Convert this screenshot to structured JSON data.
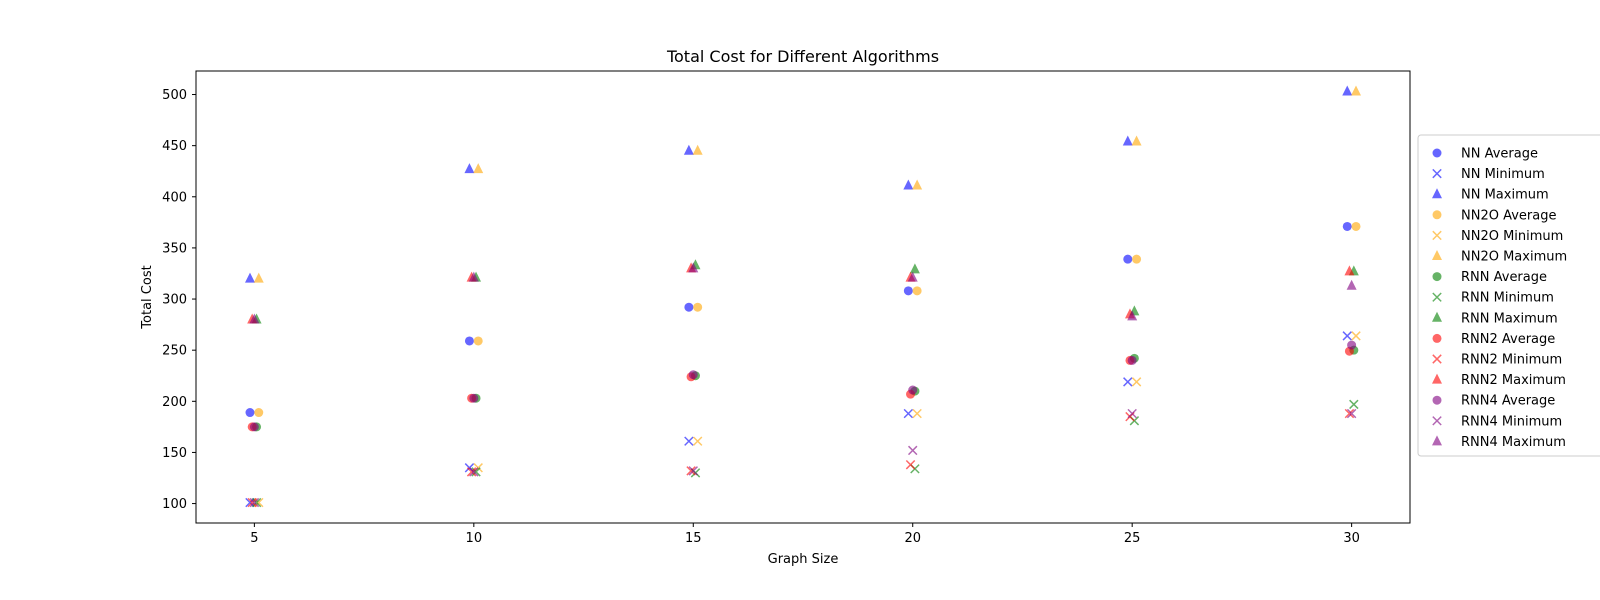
{
  "chart_data": {
    "type": "scatter",
    "title": "Total Cost for Different Algorithms",
    "xlabel": "Graph Size",
    "ylabel": "Total Cost",
    "x_ticks": [
      5,
      10,
      15,
      20,
      25,
      30
    ],
    "y_ticks": [
      100,
      150,
      200,
      250,
      300,
      350,
      400,
      450,
      500
    ],
    "xlim": [
      3.67,
      31.33
    ],
    "ylim": [
      81,
      523
    ],
    "grid": false,
    "legend_position": "right, outside plot area",
    "series": [
      {
        "name": "NN Average",
        "color": "#0000ff",
        "marker": "circle",
        "offset": -0.1,
        "points": [
          [
            5,
            189
          ],
          [
            10,
            259
          ],
          [
            15,
            292
          ],
          [
            20,
            308
          ],
          [
            25,
            339
          ],
          [
            30,
            371
          ]
        ]
      },
      {
        "name": "NN Minimum",
        "color": "#0000ff",
        "marker": "x",
        "offset": -0.1,
        "points": [
          [
            5,
            101
          ],
          [
            10,
            135
          ],
          [
            15,
            161
          ],
          [
            20,
            188
          ],
          [
            25,
            219
          ],
          [
            30,
            264
          ]
        ]
      },
      {
        "name": "NN Maximum",
        "color": "#0000ff",
        "marker": "triangle",
        "offset": -0.1,
        "points": [
          [
            5,
            320
          ],
          [
            10,
            427
          ],
          [
            15,
            445
          ],
          [
            20,
            411
          ],
          [
            25,
            454
          ],
          [
            30,
            503
          ]
        ]
      },
      {
        "name": "NN2O Average",
        "color": "#ffa500",
        "marker": "circle",
        "offset": 0.1,
        "points": [
          [
            5,
            189
          ],
          [
            10,
            259
          ],
          [
            15,
            292
          ],
          [
            20,
            308
          ],
          [
            25,
            339
          ],
          [
            30,
            371
          ]
        ]
      },
      {
        "name": "NN2O Minimum",
        "color": "#ffa500",
        "marker": "x",
        "offset": 0.1,
        "points": [
          [
            5,
            101
          ],
          [
            10,
            135
          ],
          [
            15,
            161
          ],
          [
            20,
            188
          ],
          [
            25,
            219
          ],
          [
            30,
            264
          ]
        ]
      },
      {
        "name": "NN2O Maximum",
        "color": "#ffa500",
        "marker": "triangle",
        "offset": 0.1,
        "points": [
          [
            5,
            320
          ],
          [
            10,
            427
          ],
          [
            15,
            445
          ],
          [
            20,
            411
          ],
          [
            25,
            454
          ],
          [
            30,
            503
          ]
        ]
      },
      {
        "name": "RNN Average",
        "color": "#008000",
        "marker": "circle",
        "offset": 0.05,
        "points": [
          [
            5,
            175
          ],
          [
            10,
            203
          ],
          [
            15,
            225
          ],
          [
            20,
            210
          ],
          [
            25,
            242
          ],
          [
            30,
            250
          ]
        ]
      },
      {
        "name": "RNN Minimum",
        "color": "#008000",
        "marker": "x",
        "offset": 0.05,
        "points": [
          [
            5,
            101
          ],
          [
            10,
            131
          ],
          [
            15,
            130
          ],
          [
            20,
            134
          ],
          [
            25,
            181
          ],
          [
            30,
            197
          ]
        ]
      },
      {
        "name": "RNN Maximum",
        "color": "#008000",
        "marker": "triangle",
        "offset": 0.05,
        "points": [
          [
            5,
            280
          ],
          [
            10,
            321
          ],
          [
            15,
            333
          ],
          [
            20,
            329
          ],
          [
            25,
            288
          ],
          [
            30,
            327
          ]
        ]
      },
      {
        "name": "RNN2 Average",
        "color": "#ff0000",
        "marker": "circle",
        "offset": -0.05,
        "points": [
          [
            5,
            175
          ],
          [
            10,
            203
          ],
          [
            15,
            224
          ],
          [
            20,
            207
          ],
          [
            25,
            240
          ],
          [
            30,
            249
          ]
        ]
      },
      {
        "name": "RNN2 Minimum",
        "color": "#ff0000",
        "marker": "x",
        "offset": -0.05,
        "points": [
          [
            5,
            101
          ],
          [
            10,
            131
          ],
          [
            15,
            132
          ],
          [
            20,
            138
          ],
          [
            25,
            185
          ],
          [
            30,
            188
          ]
        ]
      },
      {
        "name": "RNN2 Maximum",
        "color": "#ff0000",
        "marker": "triangle",
        "offset": -0.05,
        "points": [
          [
            5,
            280
          ],
          [
            10,
            321
          ],
          [
            15,
            330
          ],
          [
            20,
            321
          ],
          [
            25,
            285
          ],
          [
            30,
            327
          ]
        ]
      },
      {
        "name": "RNN4 Average",
        "color": "#800080",
        "marker": "circle",
        "offset": 0.0,
        "points": [
          [
            5,
            175
          ],
          [
            10,
            203
          ],
          [
            15,
            226
          ],
          [
            20,
            211
          ],
          [
            25,
            240
          ],
          [
            30,
            255
          ]
        ]
      },
      {
        "name": "RNN4 Minimum",
        "color": "#800080",
        "marker": "x",
        "offset": 0.0,
        "points": [
          [
            5,
            101
          ],
          [
            10,
            131
          ],
          [
            15,
            132
          ],
          [
            20,
            152
          ],
          [
            25,
            188
          ],
          [
            30,
            188
          ]
        ]
      },
      {
        "name": "RNN4 Maximum",
        "color": "#800080",
        "marker": "triangle",
        "offset": 0.0,
        "points": [
          [
            5,
            280
          ],
          [
            10,
            321
          ],
          [
            15,
            330
          ],
          [
            20,
            321
          ],
          [
            25,
            283
          ],
          [
            30,
            313
          ]
        ]
      }
    ]
  }
}
